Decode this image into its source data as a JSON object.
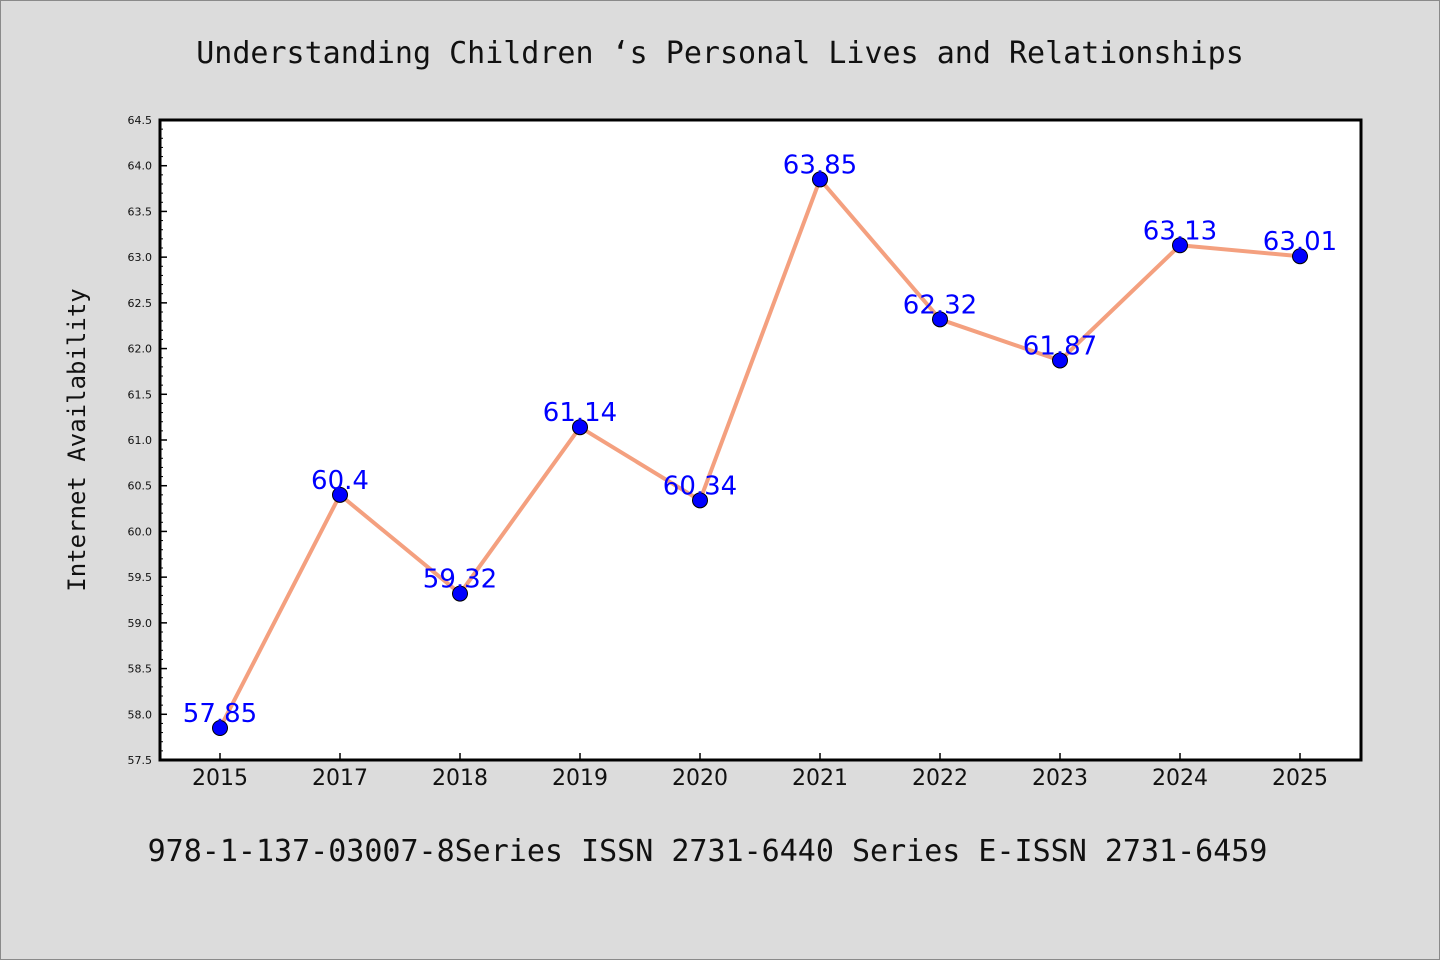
{
  "chart_data": {
    "type": "line",
    "title": "Understanding Children ‘s Personal Lives and Relationships",
    "xlabel": "",
    "ylabel": "Internet Availability",
    "categories": [
      "2015",
      "2017",
      "2018",
      "2019",
      "2020",
      "2021",
      "2022",
      "2023",
      "2024",
      "2025"
    ],
    "values": [
      57.85,
      60.4,
      59.32,
      61.14,
      60.34,
      63.85,
      62.32,
      61.87,
      63.13,
      63.01
    ],
    "data_labels": [
      "57.85",
      "60.4",
      "59.32",
      "61.14",
      "60.34",
      "63.85",
      "62.32",
      "61.87",
      "63.13",
      "63.01"
    ],
    "ylim": [
      57.5,
      64.5
    ],
    "yticks": [
      "57.5",
      "58.0",
      "58.5",
      "59.0",
      "59.5",
      "60.0",
      "60.5",
      "61.0",
      "61.5",
      "62.0",
      "62.5",
      "63.0",
      "63.5",
      "64.0",
      "64.5"
    ],
    "grid": false,
    "colors": {
      "line": "#f4a07f",
      "marker": "#0000ff",
      "label": "#0000ff",
      "background": "#dcdcdc",
      "plot_background": "#ffffff"
    }
  },
  "footer": {
    "text": "978-1-137-03007-8Series ISSN 2731-6440 Series E-ISSN 2731-6459"
  }
}
